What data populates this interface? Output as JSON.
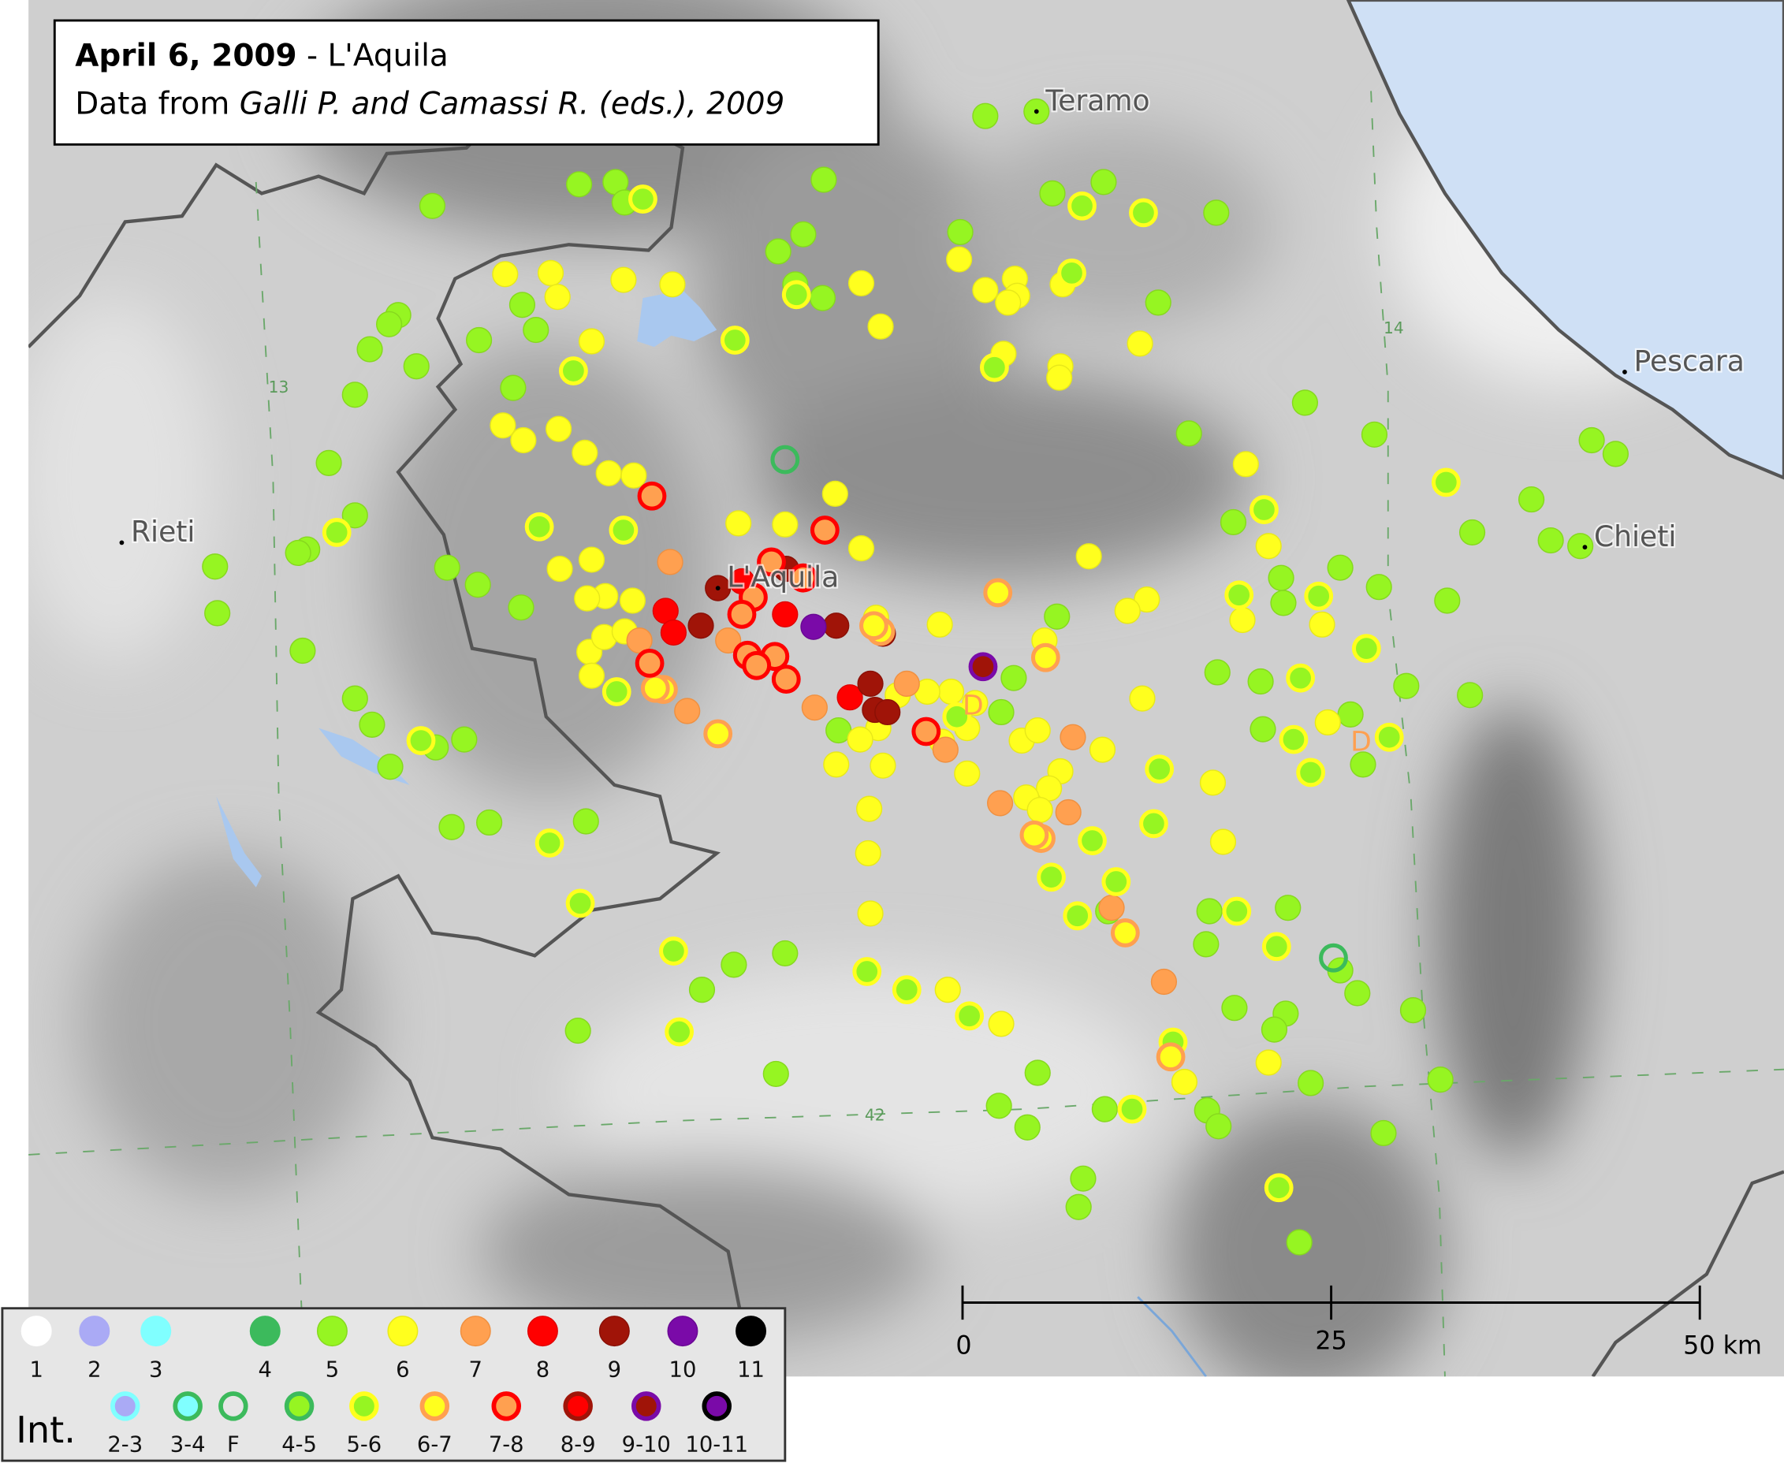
{
  "title": {
    "date": "April 6, 2009",
    "place": " - L'Aquila",
    "source_prefix": "Data from ",
    "source_ref": "Galli P. and Camassi R. (eds.), 2009"
  },
  "cities": [
    "Teramo",
    "Pescara",
    "Rieti",
    "Chieti",
    "L'Aquila"
  ],
  "grid_labels": [
    "14",
    "42",
    "13"
  ],
  "other_labels": [
    "D",
    "D"
  ],
  "scale_bar": {
    "lim": [
      0,
      50
    ],
    "ticks": [
      0,
      25,
      {
        "value": 50,
        "label": "50 km"
      }
    ]
  },
  "legend": {
    "title": "Int.",
    "items": [
      {
        "label": "1",
        "fill": "#ffffff",
        "stroke": "#ffffff"
      },
      {
        "label": "2",
        "fill": "#aaaaf5",
        "stroke": "#aaaaf5"
      },
      {
        "label": "3",
        "fill": "#80ffff",
        "stroke": "#80ffff"
      },
      {
        "label": "4",
        "fill": "#3cba5c",
        "stroke": "#3cba5c"
      },
      {
        "label": "5",
        "fill": "#96f522",
        "stroke": "#86d81e"
      },
      {
        "label": "6",
        "fill": "#ffff1e",
        "stroke": "#e8e81a"
      },
      {
        "label": "7",
        "fill": "#ffa050",
        "stroke": "#f09040"
      },
      {
        "label": "8",
        "fill": "#ff0000",
        "stroke": "#e00000"
      },
      {
        "label": "9",
        "fill": "#a01408",
        "stroke": "#8a1006"
      },
      {
        "label": "10",
        "fill": "#7a0aa8",
        "stroke": "#6a0894"
      },
      {
        "label": "11",
        "fill": "#000000",
        "stroke": "#000000"
      },
      {
        "label": "2-3",
        "fill": "#aaaaf5",
        "stroke": "#80ffff"
      },
      {
        "label": "3-4",
        "fill": "#80ffff",
        "stroke": "#3cba5c"
      },
      {
        "label": "F",
        "fill": "none",
        "stroke": "#3cba5c"
      },
      {
        "label": "4-5",
        "fill": "#96f522",
        "stroke": "#3cba5c"
      },
      {
        "label": "5-6",
        "fill": "#96f522",
        "stroke": "#ffff1e"
      },
      {
        "label": "6-7",
        "fill": "#ffff1e",
        "stroke": "#ffa050"
      },
      {
        "label": "7-8",
        "fill": "#ffa050",
        "stroke": "#ff0000"
      },
      {
        "label": "8-9",
        "fill": "#ff0000",
        "stroke": "#a01408"
      },
      {
        "label": "9-10",
        "fill": "#a01408",
        "stroke": "#7a0aa8"
      },
      {
        "label": "10-11",
        "fill": "#7a0aa8",
        "stroke": "#000000"
      }
    ]
  }
}
